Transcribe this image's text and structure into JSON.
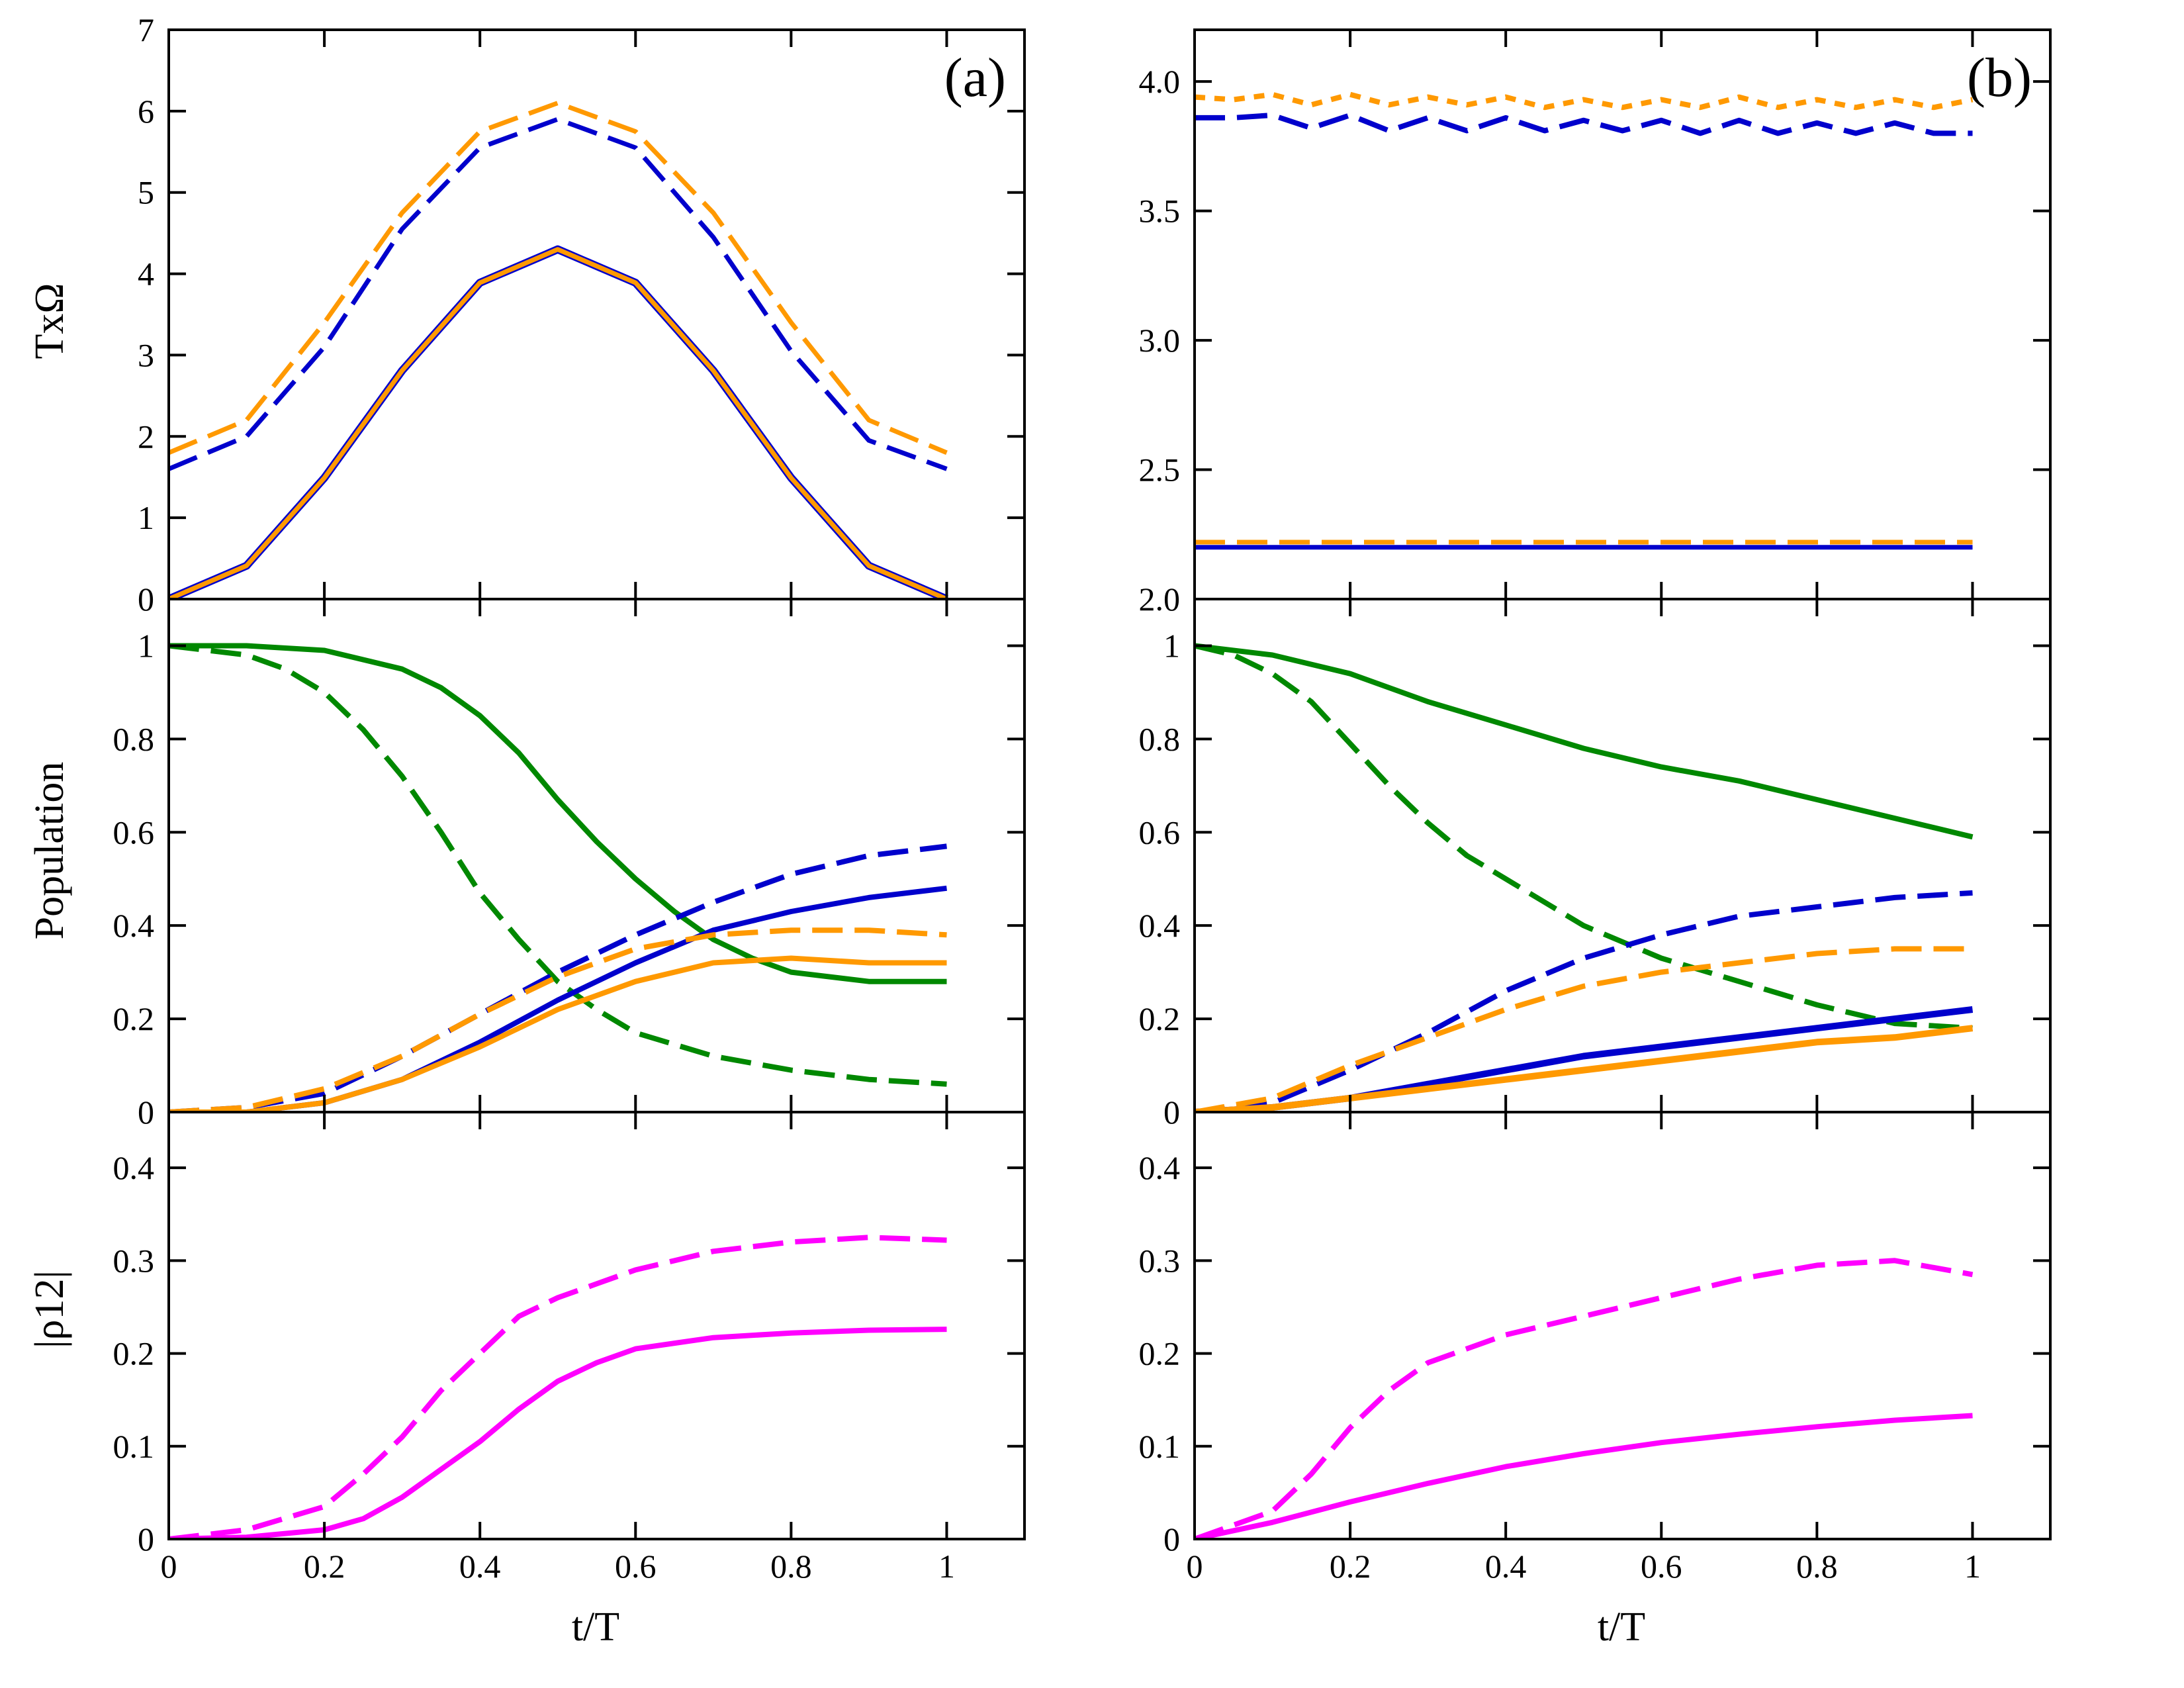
{
  "figure": {
    "row_titles": [
      "T×Ω",
      "Population",
      "|ρ12|"
    ],
    "xlabel": "t/T",
    "panel_tags": [
      "(a)",
      "(b)"
    ]
  },
  "chart_data": [
    {
      "id": "a-top",
      "type": "line",
      "tag": "(a)",
      "ylabel": "TxΩ",
      "xlabel": "",
      "xlim": [
        0,
        1.1
      ],
      "ylim": [
        0,
        7
      ],
      "xticks": [
        0,
        0.2,
        0.4,
        0.6,
        0.8,
        1
      ],
      "xtick_labels": [],
      "yticks": [
        0,
        1,
        2,
        3,
        4,
        5,
        6,
        7
      ],
      "ytick_labels": [
        "0",
        "1",
        "2",
        "3",
        "4",
        "5",
        "6",
        "7"
      ],
      "series": [
        {
          "color": "#0000cc",
          "style": "solid",
          "width": 12,
          "x": [
            0,
            0.1,
            0.2,
            0.3,
            0.4,
            0.5,
            0.6,
            0.7,
            0.8,
            0.9,
            1.0
          ],
          "y": [
            0,
            0.41,
            1.49,
            2.81,
            3.89,
            4.3,
            3.89,
            2.81,
            1.49,
            0.41,
            0
          ]
        },
        {
          "color": "#ff9900",
          "style": "solid",
          "width": 7,
          "x": [
            0,
            0.1,
            0.2,
            0.3,
            0.4,
            0.5,
            0.6,
            0.7,
            0.8,
            0.9,
            1.0
          ],
          "y": [
            0,
            0.41,
            1.49,
            2.81,
            3.89,
            4.3,
            3.89,
            2.81,
            1.49,
            0.41,
            0
          ]
        },
        {
          "color": "#ff9900",
          "style": "dashed",
          "width": 7,
          "x": [
            0,
            0.1,
            0.2,
            0.3,
            0.4,
            0.5,
            0.6,
            0.7,
            0.8,
            0.9,
            1.0
          ],
          "y": [
            1.8,
            2.2,
            3.4,
            4.75,
            5.75,
            6.1,
            5.75,
            4.75,
            3.4,
            2.2,
            1.8
          ]
        },
        {
          "color": "#0000cc",
          "style": "dashed",
          "width": 7,
          "x": [
            0,
            0.1,
            0.2,
            0.3,
            0.4,
            0.5,
            0.6,
            0.7,
            0.8,
            0.9,
            1.0
          ],
          "y": [
            1.6,
            2.0,
            3.1,
            4.55,
            5.55,
            5.9,
            5.55,
            4.45,
            3.05,
            1.95,
            1.6
          ]
        }
      ]
    },
    {
      "id": "b-top",
      "type": "line",
      "tag": "(b)",
      "ylabel": "",
      "xlabel": "",
      "xlim": [
        0,
        1.1
      ],
      "ylim": [
        2.0,
        4.2
      ],
      "xticks": [
        0,
        0.2,
        0.4,
        0.6,
        0.8,
        1
      ],
      "xtick_labels": [],
      "yticks": [
        2.0,
        2.5,
        3.0,
        3.5,
        4.0
      ],
      "ytick_labels": [
        "2.0",
        "2.5",
        "3.0",
        "3.5",
        "4.0"
      ],
      "series": [
        {
          "color": "#ff9900",
          "style": "dotted",
          "width": 8,
          "x": [
            0,
            0.05,
            0.1,
            0.15,
            0.2,
            0.25,
            0.3,
            0.35,
            0.4,
            0.45,
            0.5,
            0.55,
            0.6,
            0.65,
            0.7,
            0.75,
            0.8,
            0.85,
            0.9,
            0.95,
            1.0
          ],
          "y": [
            3.94,
            3.93,
            3.95,
            3.91,
            3.95,
            3.91,
            3.94,
            3.91,
            3.94,
            3.9,
            3.93,
            3.9,
            3.93,
            3.9,
            3.94,
            3.9,
            3.93,
            3.9,
            3.93,
            3.9,
            3.93
          ]
        },
        {
          "color": "#0000cc",
          "style": "dashed",
          "width": 8,
          "x": [
            0,
            0.05,
            0.1,
            0.15,
            0.2,
            0.25,
            0.3,
            0.35,
            0.4,
            0.45,
            0.5,
            0.55,
            0.6,
            0.65,
            0.7,
            0.75,
            0.8,
            0.85,
            0.9,
            0.95,
            1.0
          ],
          "y": [
            3.86,
            3.86,
            3.87,
            3.82,
            3.87,
            3.81,
            3.86,
            3.81,
            3.86,
            3.81,
            3.85,
            3.81,
            3.85,
            3.8,
            3.85,
            3.8,
            3.84,
            3.8,
            3.84,
            3.8,
            3.8
          ]
        },
        {
          "color": "#ff9900",
          "style": "dashed",
          "width": 7,
          "x": [
            0,
            1.0
          ],
          "y": [
            2.22,
            2.22
          ]
        },
        {
          "color": "#0000cc",
          "style": "solid",
          "width": 7,
          "x": [
            0,
            1.0
          ],
          "y": [
            2.2,
            2.2
          ]
        }
      ]
    },
    {
      "id": "a-mid",
      "type": "line",
      "tag": "",
      "ylabel": "Population",
      "xlabel": "",
      "xlim": [
        0,
        1.1
      ],
      "ylim": [
        0,
        1.1
      ],
      "xticks": [
        0,
        0.2,
        0.4,
        0.6,
        0.8,
        1
      ],
      "xtick_labels": [],
      "yticks": [
        0,
        0.2,
        0.4,
        0.6,
        0.8,
        1
      ],
      "ytick_labels": [
        "0",
        "0.2",
        "0.4",
        "0.6",
        "0.8",
        "1"
      ],
      "series": [
        {
          "color": "#008800",
          "style": "solid",
          "width": 8,
          "x": [
            0,
            0.1,
            0.2,
            0.3,
            0.35,
            0.4,
            0.45,
            0.5,
            0.55,
            0.6,
            0.65,
            0.7,
            0.75,
            0.8,
            0.9,
            1.0
          ],
          "y": [
            1.0,
            1.0,
            0.99,
            0.95,
            0.91,
            0.85,
            0.77,
            0.67,
            0.58,
            0.5,
            0.43,
            0.37,
            0.33,
            0.3,
            0.28,
            0.28
          ]
        },
        {
          "color": "#008800",
          "style": "dashed",
          "width": 8,
          "x": [
            0,
            0.1,
            0.15,
            0.2,
            0.25,
            0.3,
            0.35,
            0.4,
            0.45,
            0.5,
            0.55,
            0.6,
            0.7,
            0.8,
            0.9,
            1.0
          ],
          "y": [
            1.0,
            0.98,
            0.95,
            0.9,
            0.82,
            0.72,
            0.6,
            0.47,
            0.37,
            0.28,
            0.22,
            0.17,
            0.12,
            0.09,
            0.07,
            0.06
          ]
        },
        {
          "color": "#0000cc",
          "style": "solid",
          "width": 8,
          "x": [
            0,
            0.1,
            0.2,
            0.3,
            0.4,
            0.5,
            0.6,
            0.7,
            0.8,
            0.9,
            1.0
          ],
          "y": [
            0,
            0.0,
            0.02,
            0.07,
            0.15,
            0.24,
            0.32,
            0.39,
            0.43,
            0.46,
            0.48
          ]
        },
        {
          "color": "#0000cc",
          "style": "dashed",
          "width": 8,
          "x": [
            0,
            0.1,
            0.2,
            0.3,
            0.4,
            0.5,
            0.6,
            0.7,
            0.8,
            0.9,
            1.0
          ],
          "y": [
            0,
            0.01,
            0.04,
            0.12,
            0.21,
            0.3,
            0.38,
            0.45,
            0.51,
            0.55,
            0.57
          ]
        },
        {
          "color": "#ff9900",
          "style": "solid",
          "width": 8,
          "x": [
            0,
            0.1,
            0.2,
            0.3,
            0.4,
            0.5,
            0.6,
            0.7,
            0.8,
            0.9,
            1.0
          ],
          "y": [
            0,
            0.0,
            0.02,
            0.07,
            0.14,
            0.22,
            0.28,
            0.32,
            0.33,
            0.32,
            0.32
          ]
        },
        {
          "color": "#ff9900",
          "style": "dashed",
          "width": 8,
          "x": [
            0,
            0.1,
            0.2,
            0.3,
            0.4,
            0.5,
            0.6,
            0.7,
            0.8,
            0.9,
            1.0
          ],
          "y": [
            0,
            0.01,
            0.05,
            0.12,
            0.21,
            0.29,
            0.35,
            0.38,
            0.39,
            0.39,
            0.38
          ]
        }
      ]
    },
    {
      "id": "b-mid",
      "type": "line",
      "tag": "",
      "ylabel": "",
      "xlabel": "",
      "xlim": [
        0,
        1.1
      ],
      "ylim": [
        0,
        1.1
      ],
      "xticks": [
        0,
        0.2,
        0.4,
        0.6,
        0.8,
        1
      ],
      "xtick_labels": [],
      "yticks": [
        0,
        0.2,
        0.4,
        0.6,
        0.8,
        1
      ],
      "ytick_labels": [
        "0",
        "0.2",
        "0.4",
        "0.6",
        "0.8",
        "1"
      ],
      "series": [
        {
          "color": "#008800",
          "style": "solid",
          "width": 8,
          "x": [
            0,
            0.1,
            0.2,
            0.3,
            0.4,
            0.5,
            0.6,
            0.7,
            0.8,
            0.9,
            1.0
          ],
          "y": [
            1.0,
            0.98,
            0.94,
            0.88,
            0.83,
            0.78,
            0.74,
            0.71,
            0.67,
            0.63,
            0.59
          ]
        },
        {
          "color": "#008800",
          "style": "dashed",
          "width": 8,
          "x": [
            0,
            0.05,
            0.1,
            0.15,
            0.2,
            0.25,
            0.3,
            0.35,
            0.4,
            0.45,
            0.5,
            0.6,
            0.7,
            0.8,
            0.9,
            1.0
          ],
          "y": [
            1.0,
            0.98,
            0.94,
            0.88,
            0.79,
            0.7,
            0.62,
            0.55,
            0.5,
            0.45,
            0.4,
            0.33,
            0.28,
            0.23,
            0.19,
            0.18
          ]
        },
        {
          "color": "#0000cc",
          "style": "solid",
          "width": 10,
          "x": [
            0,
            0.1,
            0.2,
            0.3,
            0.4,
            0.5,
            0.6,
            0.7,
            0.8,
            0.9,
            1.0
          ],
          "y": [
            0,
            0.01,
            0.03,
            0.06,
            0.09,
            0.12,
            0.14,
            0.16,
            0.18,
            0.2,
            0.22
          ]
        },
        {
          "color": "#0000cc",
          "style": "dashed",
          "width": 8,
          "x": [
            0,
            0.1,
            0.2,
            0.3,
            0.4,
            0.5,
            0.6,
            0.7,
            0.8,
            0.9,
            1.0
          ],
          "y": [
            0,
            0.02,
            0.09,
            0.17,
            0.26,
            0.33,
            0.38,
            0.42,
            0.44,
            0.46,
            0.47
          ]
        },
        {
          "color": "#ff9900",
          "style": "solid",
          "width": 10,
          "x": [
            0,
            0.1,
            0.2,
            0.3,
            0.4,
            0.5,
            0.6,
            0.7,
            0.8,
            0.9,
            1.0
          ],
          "y": [
            0,
            0.01,
            0.03,
            0.05,
            0.07,
            0.09,
            0.11,
            0.13,
            0.15,
            0.16,
            0.18
          ]
        },
        {
          "color": "#ff9900",
          "style": "dashed",
          "width": 8,
          "x": [
            0,
            0.1,
            0.2,
            0.3,
            0.4,
            0.5,
            0.6,
            0.7,
            0.8,
            0.9,
            1.0
          ],
          "y": [
            0,
            0.03,
            0.1,
            0.16,
            0.22,
            0.27,
            0.3,
            0.32,
            0.34,
            0.35,
            0.35
          ]
        }
      ]
    },
    {
      "id": "a-bot",
      "type": "line",
      "tag": "",
      "ylabel": "|ρ12|",
      "xlabel": "t/T",
      "xlim": [
        0,
        1.1
      ],
      "ylim": [
        0,
        0.46
      ],
      "xticks": [
        0,
        0.2,
        0.4,
        0.6,
        0.8,
        1
      ],
      "xtick_labels": [
        "0",
        "0.2",
        "0.4",
        "0.6",
        "0.8",
        "1"
      ],
      "yticks": [
        0,
        0.1,
        0.2,
        0.3,
        0.4
      ],
      "ytick_labels": [
        "0",
        "0.1",
        "0.2",
        "0.3",
        "0.4"
      ],
      "series": [
        {
          "color": "#ff00ff",
          "style": "solid",
          "width": 8,
          "x": [
            0,
            0.1,
            0.2,
            0.25,
            0.3,
            0.35,
            0.4,
            0.45,
            0.5,
            0.55,
            0.6,
            0.7,
            0.8,
            0.9,
            1.0
          ],
          "y": [
            0,
            0.002,
            0.01,
            0.022,
            0.045,
            0.075,
            0.105,
            0.14,
            0.17,
            0.19,
            0.205,
            0.217,
            0.222,
            0.225,
            0.226
          ]
        },
        {
          "color": "#ff00ff",
          "style": "dashed",
          "width": 8,
          "x": [
            0,
            0.1,
            0.2,
            0.25,
            0.3,
            0.35,
            0.4,
            0.45,
            0.5,
            0.55,
            0.6,
            0.7,
            0.8,
            0.9,
            1.0
          ],
          "y": [
            0,
            0.01,
            0.035,
            0.07,
            0.11,
            0.16,
            0.2,
            0.24,
            0.26,
            0.275,
            0.29,
            0.31,
            0.32,
            0.325,
            0.322
          ]
        }
      ]
    },
    {
      "id": "b-bot",
      "type": "line",
      "tag": "",
      "ylabel": "",
      "xlabel": "t/T",
      "xlim": [
        0,
        1.1
      ],
      "ylim": [
        0,
        0.46
      ],
      "xticks": [
        0,
        0.2,
        0.4,
        0.6,
        0.8,
        1
      ],
      "xtick_labels": [
        "0",
        "0.2",
        "0.4",
        "0.6",
        "0.8",
        "1"
      ],
      "yticks": [
        0,
        0.1,
        0.2,
        0.3,
        0.4
      ],
      "ytick_labels": [
        "0",
        "0.1",
        "0.2",
        "0.3",
        "0.4"
      ],
      "series": [
        {
          "color": "#ff00ff",
          "style": "solid",
          "width": 8,
          "x": [
            0,
            0.1,
            0.2,
            0.3,
            0.4,
            0.5,
            0.6,
            0.7,
            0.8,
            0.9,
            1.0
          ],
          "y": [
            0,
            0.018,
            0.04,
            0.06,
            0.078,
            0.092,
            0.104,
            0.113,
            0.121,
            0.128,
            0.133
          ]
        },
        {
          "color": "#ff00ff",
          "style": "dashed",
          "width": 8,
          "x": [
            0,
            0.1,
            0.15,
            0.2,
            0.25,
            0.3,
            0.4,
            0.5,
            0.6,
            0.7,
            0.8,
            0.9,
            1.0
          ],
          "y": [
            0,
            0.03,
            0.07,
            0.12,
            0.16,
            0.19,
            0.22,
            0.24,
            0.26,
            0.28,
            0.295,
            0.3,
            0.285
          ]
        }
      ]
    }
  ]
}
